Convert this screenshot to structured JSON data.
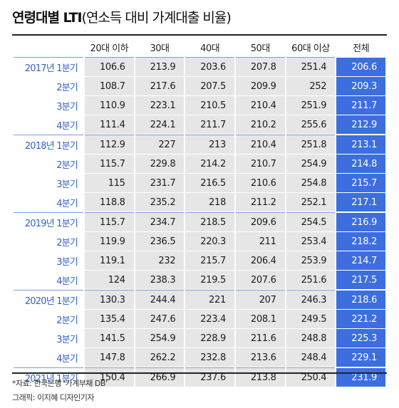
{
  "header": {
    "title_main": "연령대별 LTI",
    "title_sub": "(연소득 대비 가계대출 비율)"
  },
  "footer": {
    "source": "*자료: 한국은행 '가계부채 DB'",
    "credit": "그래픽: 이지혜 디자인기자"
  },
  "colors": {
    "accent": "#3d6ee0",
    "period_text": "#3563c9",
    "cell_bg": "#e6e6e6"
  },
  "chart_data": {
    "type": "table",
    "title": "연령대별 LTI(연소득 대비 가계대출 비율)",
    "columns": [
      "20대 이하",
      "30대",
      "40대",
      "50대",
      "60대 이상",
      "전체"
    ],
    "rows": [
      {
        "period": "2017년 1분기",
        "values": [
          106.6,
          213.9,
          203.6,
          207.8,
          251.4,
          206.6
        ]
      },
      {
        "period": "2분기",
        "values": [
          108.7,
          217.6,
          207.5,
          209.9,
          252,
          209.3
        ]
      },
      {
        "period": "3분기",
        "values": [
          110.9,
          223.1,
          210.5,
          210.4,
          251.9,
          211.7
        ]
      },
      {
        "period": "4분기",
        "values": [
          111.4,
          224.1,
          211.7,
          210.2,
          255.6,
          212.9
        ]
      },
      {
        "period": "2018년 1분기",
        "values": [
          112.9,
          227,
          213,
          210.4,
          251.8,
          213.1
        ]
      },
      {
        "period": "2분기",
        "values": [
          115.7,
          229.8,
          214.2,
          210.7,
          254.9,
          214.8
        ]
      },
      {
        "period": "3분기",
        "values": [
          115,
          231.7,
          216.5,
          210.6,
          254.8,
          215.7
        ]
      },
      {
        "period": "4분기",
        "values": [
          118.8,
          235.2,
          218,
          211.2,
          252.1,
          217.1
        ]
      },
      {
        "period": "2019년 1분기",
        "values": [
          115.7,
          234.7,
          218.5,
          209.6,
          254.5,
          216.9
        ]
      },
      {
        "period": "2분기",
        "values": [
          119.9,
          236.5,
          220.3,
          211,
          253.4,
          218.2
        ]
      },
      {
        "period": "3분기",
        "values": [
          119.1,
          232,
          215.7,
          206.4,
          253.9,
          214.7
        ]
      },
      {
        "period": "4분기",
        "values": [
          124,
          238.3,
          219.5,
          207.6,
          251.6,
          217.5
        ]
      },
      {
        "period": "2020년 1분기",
        "values": [
          130.3,
          244.4,
          221,
          207,
          246.3,
          218.6
        ]
      },
      {
        "period": "2분기",
        "values": [
          135.4,
          247.6,
          223.4,
          208.1,
          249.5,
          221.2
        ]
      },
      {
        "period": "3분기",
        "values": [
          141.5,
          254.9,
          228.9,
          211.6,
          248.8,
          225.3
        ]
      },
      {
        "period": "4분기",
        "values": [
          147.8,
          262.2,
          232.8,
          213.6,
          248.4,
          229.1
        ]
      },
      {
        "period": "2021년 1분기",
        "values": [
          150.4,
          266.9,
          237.6,
          213.8,
          250.4,
          231.9
        ]
      }
    ]
  }
}
